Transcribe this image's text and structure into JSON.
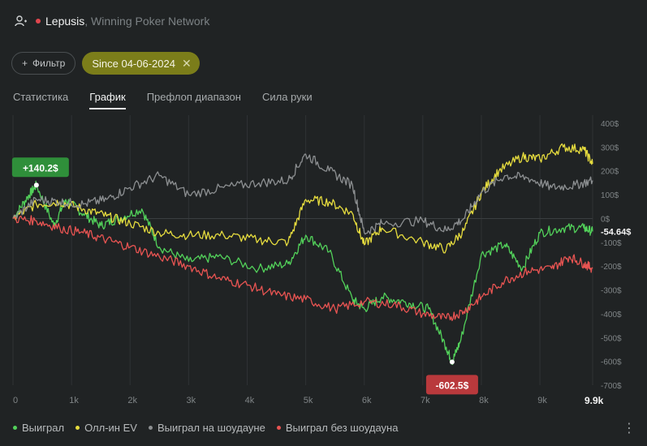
{
  "header": {
    "player": "Lepusis",
    "network": ", Winning Poker Network"
  },
  "filters": {
    "filter_label": "Фильтр",
    "date_chip": "Since 04-06-2024"
  },
  "tabs": [
    {
      "label": "Статистика",
      "active": false
    },
    {
      "label": "График",
      "active": true
    },
    {
      "label": "Префлоп диапазон",
      "active": false
    },
    {
      "label": "Сила руки",
      "active": false
    }
  ],
  "chart_data": {
    "type": "line",
    "x_ticks": [
      "0",
      "1k",
      "2k",
      "3k",
      "4k",
      "5k",
      "6k",
      "7k",
      "8k",
      "9k"
    ],
    "x_final_label": "9.9k",
    "y_ticks": [
      "400$",
      "300$",
      "200$",
      "100$",
      "0$",
      "-100$",
      "-200$",
      "-300$",
      "-400$",
      "-500$",
      "-600$",
      "-700$"
    ],
    "xlim": [
      0,
      9900
    ],
    "ylim": [
      -700,
      400
    ],
    "grid": true,
    "annotations": {
      "peak_label": "+140.2$",
      "trough_label": "-602.5$",
      "last_label": "-54.64$"
    },
    "series": [
      {
        "name": "Выиграл",
        "color": "#52d15a",
        "points": [
          [
            0,
            0
          ],
          [
            250,
            90
          ],
          [
            400,
            140.2
          ],
          [
            700,
            -30
          ],
          [
            900,
            80
          ],
          [
            1200,
            20
          ],
          [
            1500,
            -30
          ],
          [
            1800,
            0
          ],
          [
            2200,
            40
          ],
          [
            2500,
            -120
          ],
          [
            3000,
            -180
          ],
          [
            3500,
            -160
          ],
          [
            4200,
            -210
          ],
          [
            4700,
            -190
          ],
          [
            5000,
            -70
          ],
          [
            5400,
            -140
          ],
          [
            5800,
            -340
          ],
          [
            6000,
            -380
          ],
          [
            6300,
            -330
          ],
          [
            6700,
            -350
          ],
          [
            7100,
            -380
          ],
          [
            7400,
            -540
          ],
          [
            7500,
            -602.5
          ],
          [
            7650,
            -510
          ],
          [
            8000,
            -150
          ],
          [
            8400,
            -110
          ],
          [
            8700,
            -210
          ],
          [
            9000,
            -60
          ],
          [
            9400,
            -40
          ],
          [
            9750,
            -40
          ],
          [
            9900,
            -54.64
          ]
        ]
      },
      {
        "name": "Олл-ин EV",
        "color": "#e6dc3e",
        "points": [
          [
            0,
            0
          ],
          [
            400,
            60
          ],
          [
            800,
            70
          ],
          [
            1200,
            40
          ],
          [
            1600,
            10
          ],
          [
            2000,
            -20
          ],
          [
            2500,
            -60
          ],
          [
            3000,
            -70
          ],
          [
            3600,
            -70
          ],
          [
            4200,
            -90
          ],
          [
            4700,
            -100
          ],
          [
            5000,
            80
          ],
          [
            5400,
            70
          ],
          [
            5800,
            20
          ],
          [
            6000,
            -110
          ],
          [
            6300,
            -40
          ],
          [
            7000,
            -100
          ],
          [
            7400,
            -130
          ],
          [
            7700,
            -50
          ],
          [
            8000,
            110
          ],
          [
            8300,
            200
          ],
          [
            8700,
            260
          ],
          [
            9000,
            250
          ],
          [
            9400,
            300
          ],
          [
            9750,
            290
          ],
          [
            9900,
            230
          ]
        ]
      },
      {
        "name": "Выиграл на шоудауне",
        "color": "#8c8f91",
        "points": [
          [
            0,
            0
          ],
          [
            400,
            80
          ],
          [
            800,
            70
          ],
          [
            1200,
            60
          ],
          [
            1600,
            80
          ],
          [
            2000,
            130
          ],
          [
            2500,
            180
          ],
          [
            3000,
            100
          ],
          [
            3600,
            130
          ],
          [
            4200,
            150
          ],
          [
            4700,
            160
          ],
          [
            5000,
            270
          ],
          [
            5400,
            200
          ],
          [
            5800,
            140
          ],
          [
            6000,
            -60
          ],
          [
            6300,
            -20
          ],
          [
            7000,
            -10
          ],
          [
            7400,
            -50
          ],
          [
            7700,
            0
          ],
          [
            8000,
            110
          ],
          [
            8400,
            180
          ],
          [
            8800,
            170
          ],
          [
            9200,
            130
          ],
          [
            9600,
            140
          ],
          [
            9900,
            160
          ]
        ]
      },
      {
        "name": "Выиграл без шоудауна",
        "color": "#e85452",
        "points": [
          [
            0,
            0
          ],
          [
            400,
            -10
          ],
          [
            800,
            -40
          ],
          [
            1200,
            -60
          ],
          [
            1600,
            -90
          ],
          [
            2000,
            -120
          ],
          [
            2500,
            -160
          ],
          [
            3000,
            -200
          ],
          [
            3500,
            -250
          ],
          [
            4000,
            -280
          ],
          [
            4500,
            -320
          ],
          [
            5000,
            -340
          ],
          [
            5500,
            -380
          ],
          [
            6000,
            -350
          ],
          [
            6500,
            -360
          ],
          [
            7000,
            -400
          ],
          [
            7400,
            -420
          ],
          [
            7700,
            -390
          ],
          [
            8000,
            -330
          ],
          [
            8400,
            -260
          ],
          [
            8800,
            -220
          ],
          [
            9200,
            -210
          ],
          [
            9500,
            -160
          ],
          [
            9750,
            -190
          ],
          [
            9900,
            -210
          ]
        ]
      }
    ]
  }
}
